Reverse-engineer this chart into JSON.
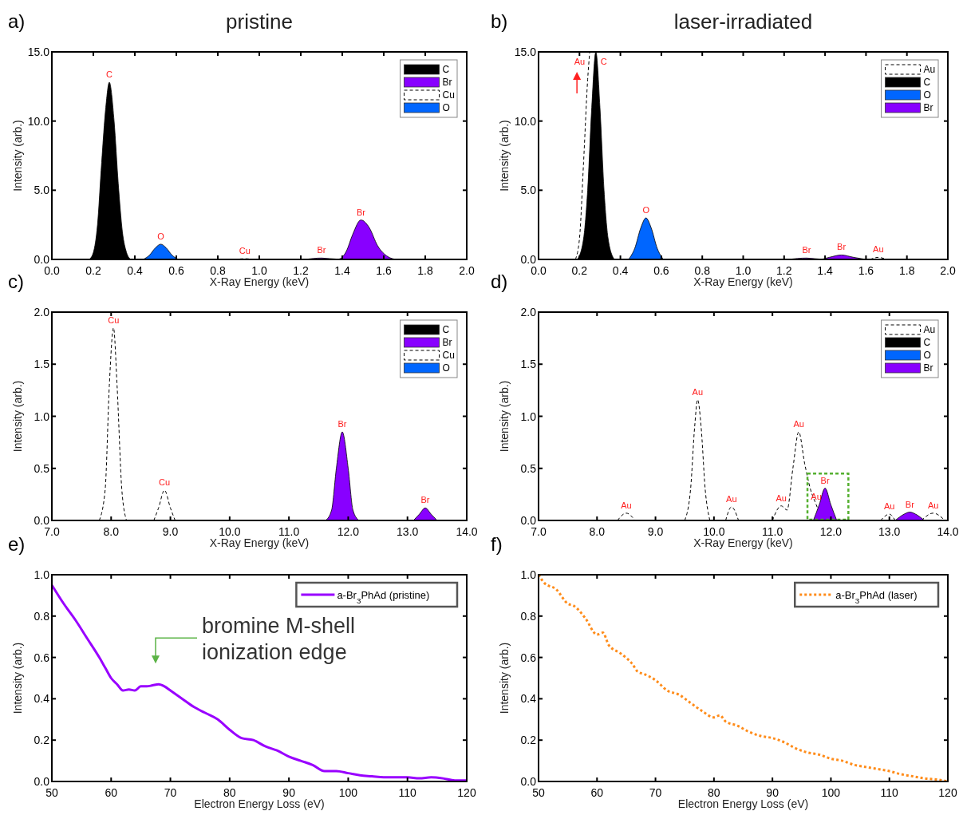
{
  "chart_data": [
    {
      "type": "area",
      "title": "pristine",
      "xlabel": "X-Ray Energy (keV)",
      "ylabel": "Intensity (arb.)",
      "legend": "top right",
      "xlim": [
        0,
        2
      ],
      "xticks": [
        {
          "value": 0,
          "label": "0.0"
        },
        {
          "value": 0.2,
          "label": "0.2"
        },
        {
          "value": 0.4,
          "label": "0.4"
        },
        {
          "value": 0.6,
          "label": "0.6"
        },
        {
          "value": 0.8,
          "label": "0.8"
        },
        {
          "value": 1,
          "label": "1.0"
        },
        {
          "value": 1.2,
          "label": "1.2"
        },
        {
          "value": 1.4,
          "label": "1.4"
        },
        {
          "value": 1.6,
          "label": "1.6"
        },
        {
          "value": 1.8,
          "label": "1.8"
        },
        {
          "value": 2,
          "label": "2.0"
        }
      ],
      "ylim": [
        0,
        15
      ],
      "yticks": [
        {
          "value": 0,
          "label": "0.0"
        },
        {
          "value": 5,
          "label": "5.0"
        },
        {
          "value": 10,
          "label": "10.0"
        },
        {
          "value": 15,
          "label": "15.0"
        }
      ],
      "series": [
        {
          "name": "C",
          "color": "#000000",
          "x": [
            0.18,
            0.2,
            0.22,
            0.24,
            0.26,
            0.277,
            0.3,
            0.32,
            0.34,
            0.36,
            0.38
          ],
          "values": [
            0,
            0.5,
            2.5,
            7,
            11,
            12.8,
            10,
            5.5,
            2,
            0.5,
            0
          ]
        },
        {
          "name": "Br",
          "color": "#8800ff",
          "x": [
            1.22,
            1.3,
            1.38,
            1.42,
            1.45,
            1.49,
            1.53,
            1.57,
            1.62,
            1.66
          ],
          "values": [
            0,
            0.1,
            0.02,
            0.6,
            1.8,
            2.85,
            2.3,
            1,
            0.2,
            0
          ]
        },
        {
          "name": "Cu",
          "type": "line",
          "line_style": "dashed",
          "color": "#000000",
          "x": [
            0.88,
            0.93,
            0.98
          ],
          "values": [
            0,
            0.05,
            0
          ]
        },
        {
          "name": "O",
          "color": "#0066ff",
          "x": [
            0.44,
            0.47,
            0.5,
            0.525,
            0.55,
            0.58,
            0.61
          ],
          "values": [
            0,
            0.3,
            0.85,
            1.1,
            0.85,
            0.3,
            0
          ]
        }
      ],
      "annotations": [
        "a)",
        {
          "text": "C",
          "x": 0.277,
          "y": 12.8
        },
        {
          "text": "O",
          "x": 0.525,
          "y": 1.1
        },
        {
          "text": "Cu",
          "x": 0.93,
          "y": 0.05
        },
        {
          "text": "Br",
          "x": 1.3,
          "y": 0.1
        },
        {
          "text": "Br",
          "x": 1.49,
          "y": 2.85
        }
      ]
    },
    {
      "type": "area",
      "title": "laser-irradiated",
      "xlabel": "X-Ray Energy (keV)",
      "ylabel": "Intensity (arb.)",
      "legend": "top right",
      "xlim": [
        0,
        2
      ],
      "xticks": [
        {
          "value": 0,
          "label": "0.0"
        },
        {
          "value": 0.2,
          "label": "0.2"
        },
        {
          "value": 0.4,
          "label": "0.4"
        },
        {
          "value": 0.6,
          "label": "0.6"
        },
        {
          "value": 0.8,
          "label": "0.8"
        },
        {
          "value": 1,
          "label": "1.0"
        },
        {
          "value": 1.2,
          "label": "1.2"
        },
        {
          "value": 1.4,
          "label": "1.4"
        },
        {
          "value": 1.6,
          "label": "1.6"
        },
        {
          "value": 1.8,
          "label": "1.8"
        },
        {
          "value": 2,
          "label": "2.0"
        }
      ],
      "ylim": [
        0,
        15
      ],
      "yticks": [
        {
          "value": 0,
          "label": "0.0"
        },
        {
          "value": 5,
          "label": "5.0"
        },
        {
          "value": 10,
          "label": "10.0"
        },
        {
          "value": 15,
          "label": "15.0"
        }
      ],
      "series": [
        {
          "name": "Au",
          "type": "line",
          "line_style": "dashed",
          "color": "#000000",
          "x": [
            0.18,
            0.2,
            0.22,
            0.24,
            0.25,
            0.9,
            1.62,
            1.66,
            1.7
          ],
          "values": [
            0,
            1.5,
            7,
            13,
            15,
            null,
            0,
            0.15,
            0
          ]
        },
        {
          "name": "C",
          "color": "#000000",
          "x": [
            0.19,
            0.22,
            0.24,
            0.26,
            0.28,
            0.3,
            0.32,
            0.34,
            0.37
          ],
          "values": [
            0,
            1.5,
            5,
            11,
            15,
            11,
            5,
            1.5,
            0
          ]
        },
        {
          "name": "O",
          "color": "#0066ff",
          "x": [
            0.44,
            0.47,
            0.5,
            0.525,
            0.55,
            0.58,
            0.61
          ],
          "values": [
            0,
            0.8,
            2.3,
            3,
            2.3,
            0.8,
            0
          ]
        },
        {
          "name": "Br",
          "color": "#8800ff",
          "x": [
            1.22,
            1.31,
            1.38,
            1.42,
            1.48,
            1.54,
            1.6
          ],
          "values": [
            0,
            0.1,
            0.02,
            0.15,
            0.32,
            0.15,
            0
          ]
        }
      ],
      "annotations": [
        "b)",
        {
          "text": "Au",
          "x": 0.25,
          "y": 15
        },
        {
          "text": "C",
          "x": 0.28,
          "y": 15
        },
        {
          "text": "O",
          "x": 0.525,
          "y": 3
        },
        {
          "text": "Br",
          "x": 1.31,
          "y": 0.1
        },
        {
          "text": "Br",
          "x": 1.48,
          "y": 0.32
        },
        {
          "text": "Au",
          "x": 1.66,
          "y": 0.15
        }
      ]
    },
    {
      "type": "area",
      "xlabel": "X-Ray Energy (keV)",
      "ylabel": "Intensity (arb.)",
      "legend": "top right",
      "xlim": [
        7,
        14
      ],
      "xticks": [
        {
          "value": 7,
          "label": "7.0"
        },
        {
          "value": 8,
          "label": "8.0"
        },
        {
          "value": 9,
          "label": "9.0"
        },
        {
          "value": 10,
          "label": "10.0"
        },
        {
          "value": 11,
          "label": "11.0"
        },
        {
          "value": 12,
          "label": "12.0"
        },
        {
          "value": 13,
          "label": "13.0"
        },
        {
          "value": 14,
          "label": "14.0"
        }
      ],
      "ylim": [
        0,
        2
      ],
      "yticks": [
        {
          "value": 0,
          "label": "0.0"
        },
        {
          "value": 0.5,
          "label": "0.5"
        },
        {
          "value": 1,
          "label": "1.0"
        },
        {
          "value": 1.5,
          "label": "1.5"
        },
        {
          "value": 2,
          "label": "2.0"
        }
      ],
      "series": [
        {
          "name": "C",
          "color": "#000000"
        },
        {
          "name": "Br",
          "color": "#8800ff",
          "x": [
            11.62,
            11.72,
            11.8,
            11.9,
            12,
            12.08,
            12.18,
            12.6,
            13.1,
            13.2,
            13.3,
            13.4,
            13.5
          ],
          "values": [
            0,
            0.1,
            0.5,
            0.85,
            0.5,
            0.1,
            0,
            null,
            0,
            0.06,
            0.12,
            0.06,
            0
          ]
        },
        {
          "name": "Cu",
          "type": "line",
          "line_style": "dashed",
          "color": "#000000",
          "x": [
            7.8,
            7.9,
            7.97,
            8.04,
            8.1,
            8.18,
            8.26,
            8.5,
            8.72,
            8.8,
            8.9,
            9,
            9.08
          ],
          "values": [
            0,
            0.3,
            1.3,
            1.85,
            1.3,
            0.3,
            0,
            null,
            0,
            0.12,
            0.29,
            0.12,
            0
          ]
        },
        {
          "name": "O",
          "color": "#0066ff"
        }
      ],
      "annotations": [
        "c)",
        {
          "text": "Cu",
          "x": 8.04,
          "y": 1.85
        },
        {
          "text": "Cu",
          "x": 8.9,
          "y": 0.29
        },
        {
          "text": "Br",
          "x": 11.9,
          "y": 0.85
        },
        {
          "text": "Br",
          "x": 13.3,
          "y": 0.12
        }
      ]
    },
    {
      "type": "area",
      "xlabel": "X-Ray Energy (keV)",
      "ylabel": "Intensity (arb.)",
      "legend": "top right",
      "xlim": [
        7,
        14
      ],
      "xticks": [
        {
          "value": 7,
          "label": "7.0"
        },
        {
          "value": 8,
          "label": "8.0"
        },
        {
          "value": 9,
          "label": "9.0"
        },
        {
          "value": 10,
          "label": "10.0"
        },
        {
          "value": 11,
          "label": "11.0"
        },
        {
          "value": 12,
          "label": "12.0"
        },
        {
          "value": 13,
          "label": "13.0"
        },
        {
          "value": 14,
          "label": "14.0"
        }
      ],
      "ylim": [
        0,
        2
      ],
      "yticks": [
        {
          "value": 0,
          "label": "0.0"
        },
        {
          "value": 0.5,
          "label": "0.5"
        },
        {
          "value": 1,
          "label": "1.0"
        },
        {
          "value": 1.5,
          "label": "1.5"
        },
        {
          "value": 2,
          "label": "2.0"
        }
      ],
      "series": [
        {
          "name": "Au",
          "type": "line",
          "line_style": "dashed",
          "color": "#000000",
          "x": [
            8.35,
            8.5,
            8.65,
            9,
            9.5,
            9.6,
            9.67,
            9.72,
            9.78,
            9.85,
            9.93,
            10,
            10.2,
            10.3,
            10.42,
            10.7,
            11,
            11.15,
            11.25,
            11.35,
            11.45,
            11.55,
            11.65,
            11.75,
            11.85,
            12.4,
            12.85,
            13,
            13.1,
            13.3,
            13.55,
            13.75,
            13.95
          ],
          "values": [
            0,
            0.07,
            0,
            null,
            0,
            0.3,
            0.9,
            1.16,
            0.9,
            0.3,
            0,
            null,
            0,
            0.13,
            0,
            null,
            0,
            0.14,
            0.1,
            0.5,
            0.85,
            0.55,
            0.3,
            0.15,
            0,
            null,
            0,
            0.06,
            0,
            null,
            0,
            0.07,
            0
          ]
        },
        {
          "name": "C",
          "color": "#000000"
        },
        {
          "name": "O",
          "color": "#0066ff"
        },
        {
          "name": "Br",
          "color": "#8800ff",
          "x": [
            11.7,
            11.8,
            11.9,
            12,
            12.1,
            12.6,
            13.1,
            13.25,
            13.35,
            13.45,
            13.6
          ],
          "values": [
            0,
            0.15,
            0.31,
            0.15,
            0,
            null,
            0,
            0.06,
            0.08,
            0.06,
            0
          ]
        }
      ],
      "annotations": [
        "d)",
        {
          "text": "Au",
          "x": 8.5,
          "y": 0.07
        },
        {
          "text": "Au",
          "x": 9.72,
          "y": 1.16
        },
        {
          "text": "Au",
          "x": 10.3,
          "y": 0.13
        },
        {
          "text": "Au",
          "x": 11.15,
          "y": 0.14
        },
        {
          "text": "Au",
          "x": 11.45,
          "y": 0.85
        },
        {
          "text": "Au",
          "x": 11.75,
          "y": 0.15
        },
        {
          "text": "Br",
          "x": 11.9,
          "y": 0.31
        },
        {
          "text": "Au",
          "x": 13,
          "y": 0.06
        },
        {
          "text": "Br",
          "x": 13.35,
          "y": 0.08
        },
        {
          "text": "Au",
          "x": 13.75,
          "y": 0.07
        }
      ]
    },
    {
      "type": "line",
      "xlabel": "Electron Energy Loss (eV)",
      "ylabel": "Intensity (arb.)",
      "legend": "top right",
      "xlim": [
        50,
        120
      ],
      "xticks": [
        50,
        60,
        70,
        80,
        90,
        100,
        110,
        120
      ],
      "ylim": [
        0,
        1
      ],
      "yticks": [
        {
          "value": 0,
          "label": "0.0"
        },
        {
          "value": 0.2,
          "label": "0.2"
        },
        {
          "value": 0.4,
          "label": "0.4"
        },
        {
          "value": 0.6,
          "label": "0.6"
        },
        {
          "value": 0.8,
          "label": "0.8"
        },
        {
          "value": 1,
          "label": "1.0"
        }
      ],
      "series": [
        {
          "name": "a-Br$_{3}$PhAd (pristine)",
          "color": "#9900ff",
          "line_style": "solid",
          "x": [
            50,
            52,
            54,
            56,
            58,
            59,
            60,
            61,
            62,
            63,
            64,
            65,
            66,
            67,
            68,
            69,
            70,
            72,
            74,
            76,
            78,
            80,
            82,
            84,
            86,
            88,
            90,
            92,
            94,
            96,
            98,
            100,
            102,
            104,
            106,
            108,
            110,
            112,
            114,
            116,
            118,
            120
          ],
          "values": [
            0.95,
            0.86,
            0.78,
            0.69,
            0.6,
            0.55,
            0.5,
            0.47,
            0.44,
            0.445,
            0.44,
            0.46,
            0.46,
            0.465,
            0.47,
            0.46,
            0.44,
            0.4,
            0.36,
            0.33,
            0.3,
            0.25,
            0.21,
            0.2,
            0.17,
            0.15,
            0.12,
            0.1,
            0.08,
            0.05,
            0.05,
            0.04,
            0.03,
            0.025,
            0.02,
            0.02,
            0.02,
            0.015,
            0.02,
            0.015,
            0.005,
            0.005
          ]
        }
      ],
      "annotations": [
        "e)",
        {
          "text": "bromine M-shell\nionization edge",
          "x": 67.5,
          "y": 0.47
        }
      ]
    },
    {
      "type": "line",
      "xlabel": "Electron Energy Loss (eV)",
      "ylabel": "Intensity (arb.)",
      "legend": "top right",
      "xlim": [
        50,
        120
      ],
      "xticks": [
        50,
        60,
        70,
        80,
        90,
        100,
        110,
        120
      ],
      "ylim": [
        0,
        1
      ],
      "yticks": [
        {
          "value": 0,
          "label": "0.0"
        },
        {
          "value": 0.2,
          "label": "0.2"
        },
        {
          "value": 0.4,
          "label": "0.4"
        },
        {
          "value": 0.6,
          "label": "0.6"
        },
        {
          "value": 0.8,
          "label": "0.8"
        },
        {
          "value": 1,
          "label": "1.0"
        }
      ],
      "series": [
        {
          "name": "a-Br$_{3}$PhAd (laser)",
          "color": "#ff8c1a",
          "line_style": "dotted",
          "x": [
            50,
            51,
            53,
            55,
            56,
            58,
            60,
            61,
            62,
            64,
            66,
            67,
            68,
            70,
            72,
            74,
            76,
            78,
            80,
            81,
            82,
            84,
            86,
            88,
            90,
            92,
            94,
            96,
            98,
            100,
            102,
            104,
            106,
            108,
            110,
            112,
            114,
            116,
            118,
            120
          ],
          "values": [
            1,
            0.96,
            0.93,
            0.86,
            0.85,
            0.79,
            0.71,
            0.72,
            0.66,
            0.62,
            0.57,
            0.53,
            0.52,
            0.49,
            0.44,
            0.42,
            0.38,
            0.34,
            0.31,
            0.32,
            0.29,
            0.27,
            0.24,
            0.22,
            0.21,
            0.19,
            0.16,
            0.14,
            0.13,
            0.11,
            0.1,
            0.08,
            0.07,
            0.06,
            0.05,
            0.035,
            0.025,
            0.015,
            0.01,
            0
          ]
        }
      ],
      "annotations": [
        "f)"
      ]
    }
  ]
}
